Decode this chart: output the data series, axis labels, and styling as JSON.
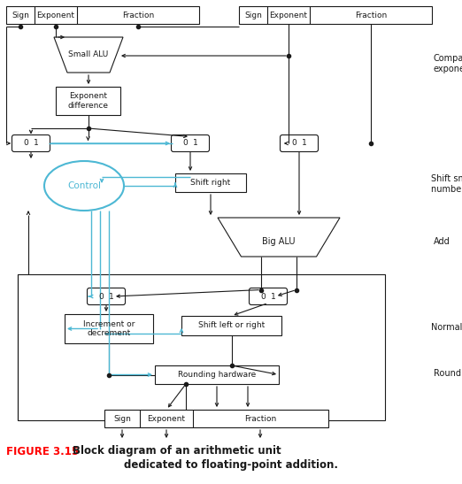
{
  "bg_color": "#ffffff",
  "black": "#1a1a1a",
  "blue": "#4db8d4",
  "fig_label": "FIGURE 3.15",
  "fig_desc1": "Block diagram of an arithmetic unit",
  "fig_desc2": "dedicated to floating-point addition."
}
